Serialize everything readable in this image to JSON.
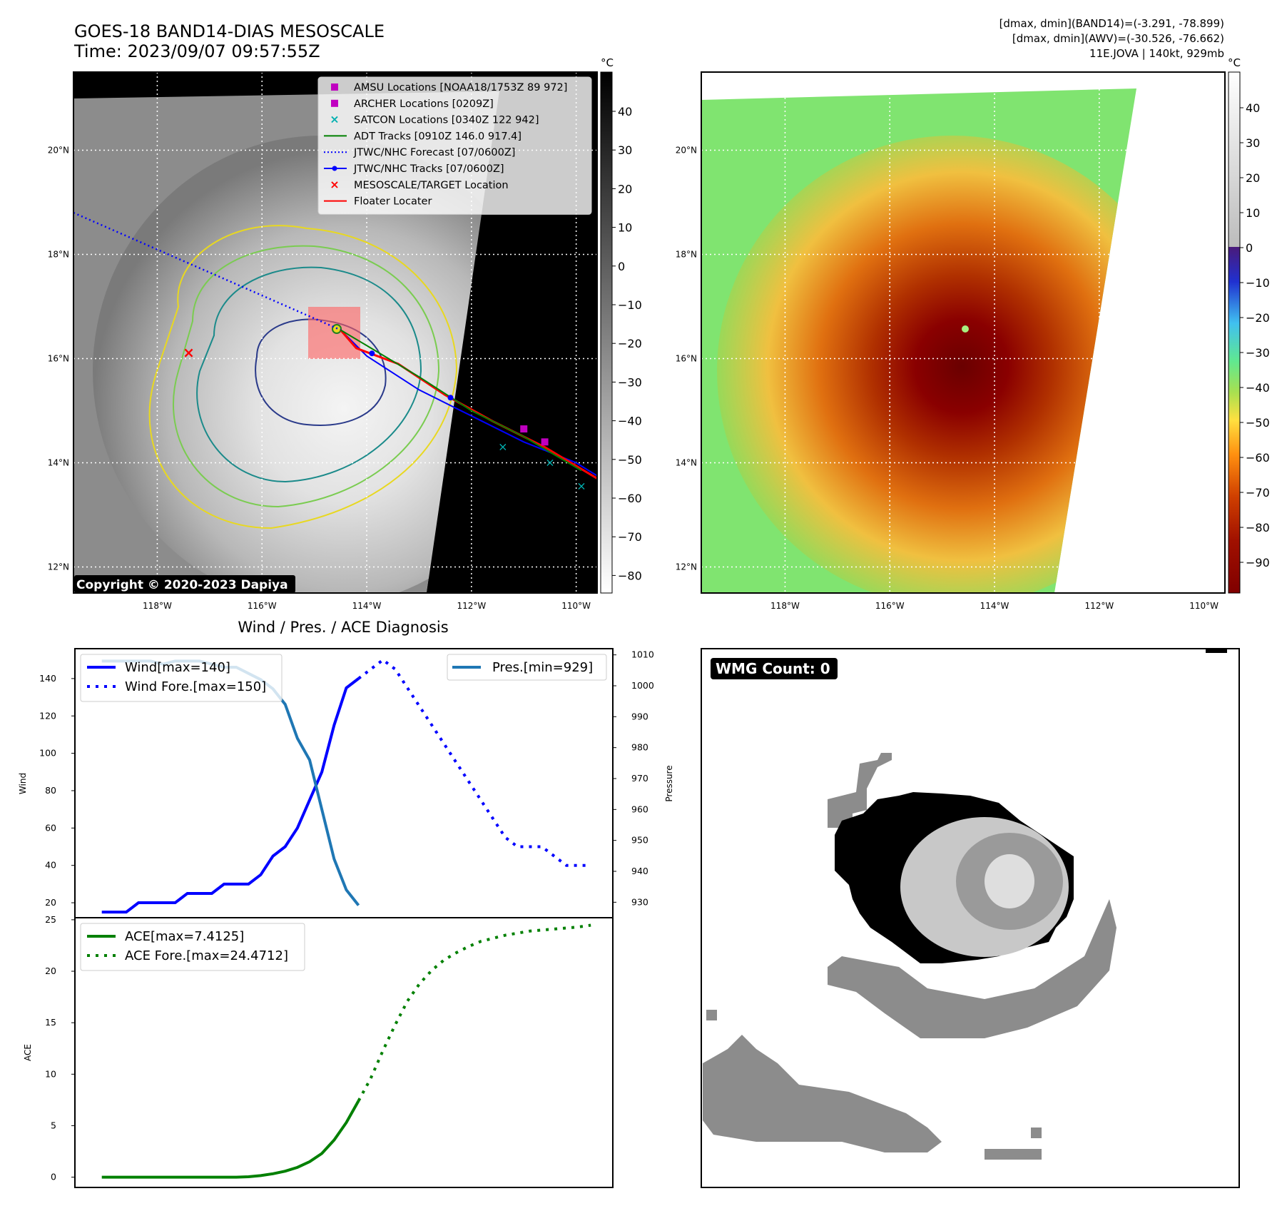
{
  "header": {
    "title_line1": "GOES-18 BAND14-DIAS MESOSCALE",
    "title_line2": "Time: 2023/09/07 09:57:55Z",
    "info_line1": "[dmax, dmin](BAND14)=(-3.291, -78.899)",
    "info_line2": "[dmax, dmin](AWV)=(-30.526, -76.662)",
    "info_line3": "11E.JOVA | 140kt, 929mb"
  },
  "maps": {
    "lon_labels": [
      "118°W",
      "116°W",
      "114°W",
      "112°W",
      "110°W"
    ],
    "lon_values": [
      -118,
      -116,
      -114,
      -112,
      -110
    ],
    "lat_labels": [
      "20°N",
      "18°N",
      "16°N",
      "14°N",
      "12°N"
    ],
    "lat_values": [
      20,
      18,
      16,
      14,
      12
    ],
    "lon_range": [
      -119.6,
      -109.6
    ],
    "lat_range": [
      11.5,
      21.5
    ],
    "storm_center": [
      -114.5,
      16.55
    ],
    "target_location": [
      -117.4,
      16.1
    ],
    "copyright": "Copyright © 2020-2023 Dapiya",
    "colorbar_unit": "°C",
    "gray_colorbar_ticks": [
      "40",
      "30",
      "20",
      "10",
      "0",
      "−10",
      "−20",
      "−30",
      "−40",
      "−50",
      "−60",
      "−70",
      "−80"
    ],
    "color_colorbar_ticks": [
      "40",
      "30",
      "20",
      "10",
      "0",
      "−10",
      "−20",
      "−30",
      "−40",
      "−50",
      "−60",
      "−70",
      "−80",
      "−90"
    ],
    "legend": [
      {
        "label": "AMSU Locations [NOAA18/1753Z 89 972]",
        "marker": "square",
        "color": "#c000c0"
      },
      {
        "label": "ARCHER Locations [0209Z]",
        "marker": "square",
        "color": "#c000c0"
      },
      {
        "label": "SATCON Locations [0340Z 122 942]",
        "marker": "x",
        "color": "#00b0b0"
      },
      {
        "label": "ADT Tracks [0910Z 146.0 917.4]",
        "marker": "line",
        "color": "#008000"
      },
      {
        "label": "JTWC/NHC Forecast [07/0600Z]",
        "marker": "dotted",
        "color": "#0000ff"
      },
      {
        "label": "JTWC/NHC Tracks [07/0600Z]",
        "marker": "line-dot",
        "color": "#0000ff"
      },
      {
        "label": "MESOSCALE/TARGET Location",
        "marker": "x",
        "color": "#ff0000"
      },
      {
        "label": "Floater Locater",
        "marker": "line",
        "color": "#ff0000"
      }
    ]
  },
  "diagnosis": {
    "title": "Wind / Pres. / ACE Diagnosis",
    "wmg_label": "WMG Count: 0"
  },
  "colors": {
    "wind": "#0000ff",
    "pressure": "#1f77b4",
    "ace": "#008000"
  },
  "chart_data": [
    {
      "type": "line",
      "title": "",
      "xlabel": "",
      "ylabel": "Wind",
      "ylabel_right": "Pressure",
      "ylim": [
        12,
        156
      ],
      "ylim_right": [
        925,
        1012
      ],
      "yticks": [
        20,
        40,
        60,
        80,
        100,
        120,
        140
      ],
      "yticks_right": [
        930,
        940,
        950,
        960,
        970,
        980,
        990,
        1000,
        1010
      ],
      "series": [
        {
          "name": "Wind[max=140]",
          "axis": "left",
          "style": "solid",
          "x": [
            0,
            1,
            2,
            3,
            4,
            5,
            6,
            7,
            8,
            9,
            10,
            11,
            12,
            13,
            14,
            15,
            16,
            17,
            18,
            19,
            20,
            21
          ],
          "values": [
            15,
            15,
            15,
            20,
            20,
            20,
            20,
            25,
            25,
            25,
            30,
            30,
            30,
            35,
            45,
            50,
            60,
            75,
            90,
            115,
            135,
            140
          ]
        },
        {
          "name": "Wind Fore.[max=150]",
          "axis": "left",
          "style": "dotted",
          "x": [
            21,
            22,
            23,
            24,
            25,
            26,
            27,
            28,
            29,
            30,
            31,
            32,
            33,
            34,
            35,
            36,
            37,
            38,
            39,
            40
          ],
          "values": [
            140,
            145,
            150,
            145,
            135,
            125,
            115,
            105,
            95,
            85,
            75,
            65,
            55,
            50,
            50,
            50,
            45,
            40,
            40,
            40
          ]
        },
        {
          "name": "Pres.[min=929]",
          "axis": "right",
          "style": "solid",
          "x": [
            0,
            1,
            2,
            3,
            4,
            5,
            6,
            7,
            8,
            9,
            10,
            11,
            12,
            13,
            14,
            15,
            16,
            17,
            18,
            19,
            20,
            21
          ],
          "values": [
            1008,
            1008,
            1008,
            1008,
            1008,
            1007,
            1008,
            1008,
            1008,
            1007,
            1006,
            1006,
            1004,
            1002,
            999,
            994,
            983,
            976,
            960,
            944,
            934,
            929
          ]
        }
      ]
    },
    {
      "type": "line",
      "title": "",
      "xlabel": "",
      "ylabel": "ACE",
      "ylim": [
        -1,
        25.2
      ],
      "yticks": [
        0,
        5,
        10,
        15,
        20,
        25
      ],
      "series": [
        {
          "name": "ACE[max=7.4125]",
          "style": "solid",
          "x": [
            0,
            1,
            2,
            3,
            4,
            5,
            6,
            7,
            8,
            9,
            10,
            11,
            12,
            13,
            14,
            15,
            16,
            17,
            18,
            19,
            20,
            21
          ],
          "values": [
            0,
            0,
            0,
            0,
            0,
            0,
            0,
            0,
            0,
            0,
            0,
            0,
            0.04,
            0.15,
            0.33,
            0.58,
            0.95,
            1.5,
            2.3,
            3.6,
            5.3,
            7.4125
          ]
        },
        {
          "name": "ACE Fore.[max=24.4712]",
          "style": "dotted",
          "x": [
            21,
            22,
            23,
            24,
            25,
            26,
            27,
            28,
            29,
            30,
            31,
            32,
            33,
            34,
            35,
            36,
            37,
            38,
            39,
            40
          ],
          "values": [
            7.4125,
            9.6,
            12.3,
            14.8,
            17.1,
            18.8,
            20.1,
            21.1,
            21.8,
            22.4,
            22.9,
            23.2,
            23.5,
            23.7,
            23.9,
            24.0,
            24.1,
            24.2,
            24.3,
            24.4712
          ]
        }
      ]
    }
  ]
}
